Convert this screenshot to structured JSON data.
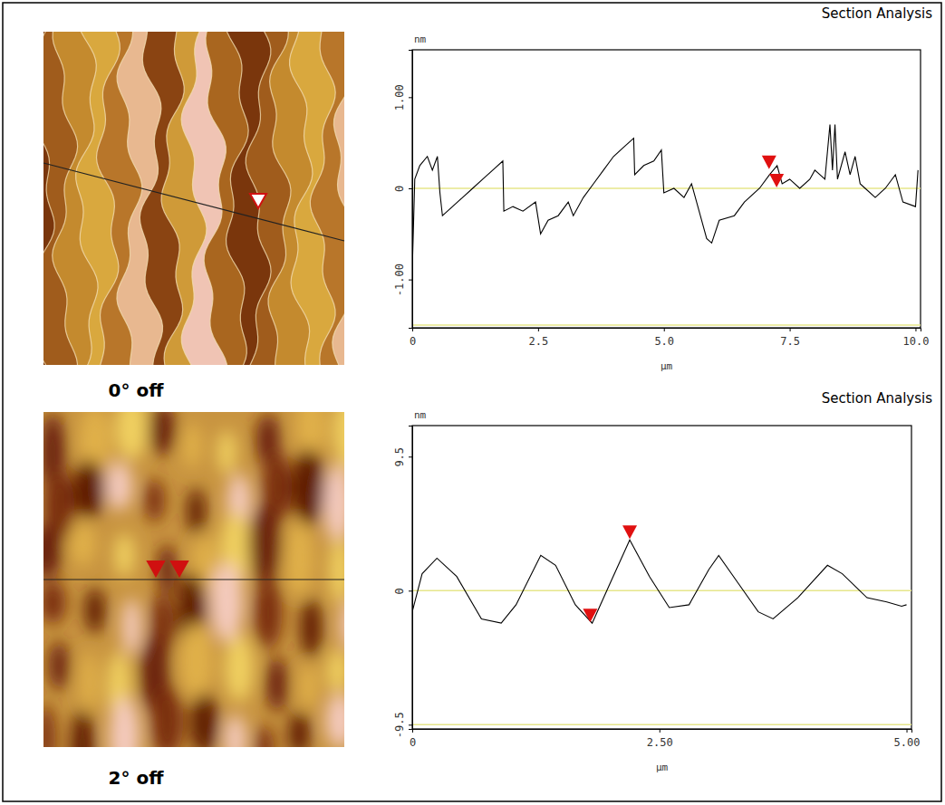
{
  "chart_data": [
    {
      "type": "line",
      "title": "Section Analysis",
      "caption": "0° off",
      "y_label": "nm",
      "x_label": "µm",
      "color": "#000000",
      "xlim": [
        0,
        10.1
      ],
      "ylim": [
        -1.53,
        1.52
      ],
      "xticks": [
        0,
        2.5,
        {
          "value": 5,
          "label": "5.0"
        },
        7.5,
        {
          "value": 10,
          "label": "10.0"
        }
      ],
      "yticks": [
        {
          "value": 1,
          "label": "1.00"
        },
        0,
        {
          "value": -1,
          "label": "-1.00"
        }
      ],
      "reference_lines": [
        0,
        -1.5
      ],
      "x": [
        0.0,
        0.05,
        0.15,
        0.3,
        0.4,
        0.5,
        0.55,
        0.6,
        0.8,
        1.0,
        1.2,
        1.4,
        1.6,
        1.8,
        1.82,
        2.0,
        2.2,
        2.45,
        2.55,
        2.7,
        2.9,
        3.1,
        3.2,
        3.4,
        3.6,
        3.8,
        4.0,
        4.2,
        4.4,
        4.42,
        4.6,
        4.8,
        4.95,
        5.0,
        5.2,
        5.4,
        5.55,
        5.7,
        5.85,
        5.95,
        6.1,
        6.4,
        6.6,
        6.9,
        7.1,
        7.25,
        7.35,
        7.5,
        7.7,
        7.9,
        8.0,
        8.2,
        8.3,
        8.35,
        8.4,
        8.45,
        8.6,
        8.7,
        8.8,
        8.9,
        9.0,
        9.2,
        9.4,
        9.6,
        9.75,
        10.0,
        10.05
      ],
      "values": [
        -0.9,
        0.1,
        0.25,
        0.35,
        0.2,
        0.35,
        -0.05,
        -0.3,
        -0.2,
        -0.1,
        0.0,
        0.1,
        0.2,
        0.3,
        -0.25,
        -0.2,
        -0.25,
        -0.15,
        -0.5,
        -0.35,
        -0.3,
        -0.15,
        -0.3,
        -0.1,
        0.05,
        0.2,
        0.35,
        0.45,
        0.55,
        0.15,
        0.25,
        0.3,
        0.42,
        -0.05,
        0.0,
        -0.1,
        0.05,
        -0.25,
        -0.55,
        -0.6,
        -0.35,
        -0.3,
        -0.15,
        0.0,
        0.15,
        0.25,
        0.05,
        0.1,
        0.0,
        0.1,
        0.2,
        0.1,
        0.7,
        0.2,
        0.7,
        0.1,
        0.4,
        0.15,
        0.35,
        0.05,
        0.0,
        -0.1,
        0.0,
        0.15,
        -0.15,
        -0.2,
        0.2
      ],
      "cursor_x": [
        7.09,
        7.24
      ],
      "cursor_y": [
        0.2,
        0.0
      ]
    },
    {
      "type": "line",
      "title": "Section Analysis",
      "caption": "2° off",
      "y_label": "nm",
      "x_label": "µm",
      "color": "#000000",
      "xlim": [
        0,
        5.05
      ],
      "ylim": [
        -9.8,
        11.7
      ],
      "xticks": [
        0,
        {
          "value": 2.5,
          "label": "2.50"
        },
        {
          "value": 5,
          "label": "5.00"
        }
      ],
      "yticks": [
        9.5,
        0,
        -9.5
      ],
      "reference_lines": [
        0,
        -9.5
      ],
      "x": [
        0.0,
        0.1,
        0.25,
        0.45,
        0.7,
        0.9,
        1.05,
        1.3,
        1.45,
        1.65,
        1.82,
        2.0,
        2.2,
        2.4,
        2.6,
        2.8,
        3.0,
        3.1,
        3.3,
        3.5,
        3.65,
        3.9,
        4.2,
        4.35,
        4.6,
        4.8,
        4.95,
        5.0
      ],
      "values": [
        -1.5,
        1.2,
        2.3,
        1.0,
        -2.0,
        -2.3,
        -1.0,
        2.5,
        1.8,
        -1.0,
        -2.3,
        0.5,
        3.6,
        1.0,
        -1.2,
        -1.0,
        1.5,
        2.5,
        0.5,
        -1.5,
        -2.0,
        -0.5,
        1.8,
        1.2,
        -0.5,
        -0.8,
        -1.1,
        -1.0
      ],
      "cursor_x": [
        1.8,
        2.2
      ],
      "cursor_y": [
        -2.3,
        3.6
      ]
    }
  ]
}
